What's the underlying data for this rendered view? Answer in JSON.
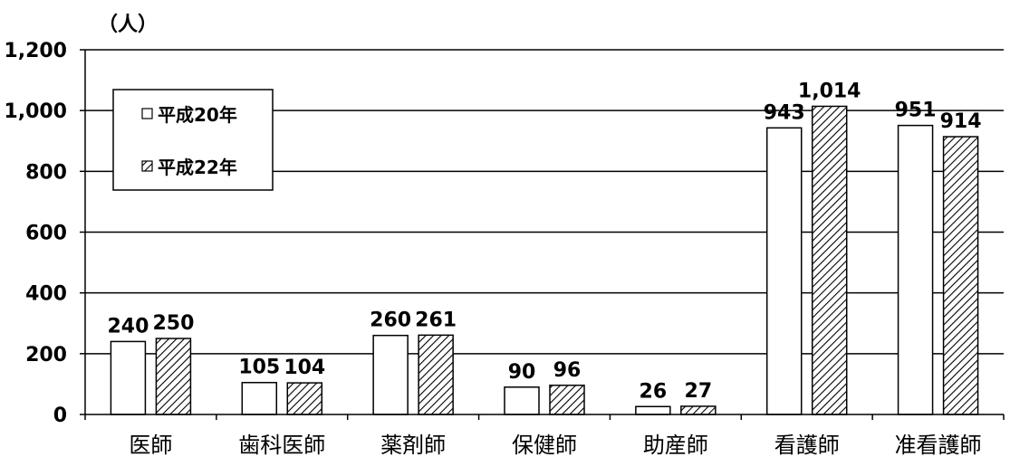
{
  "chart_data": {
    "type": "bar",
    "unit_label": "（人）",
    "categories": [
      "医師",
      "歯科医師",
      "薬剤師",
      "保健師",
      "助産師",
      "看護師",
      "准看護師"
    ],
    "series": [
      {
        "name": "平成20年",
        "values": [
          240,
          105,
          260,
          90,
          26,
          943,
          951
        ],
        "labels": [
          "240",
          "105",
          "260",
          "90",
          "26",
          "943",
          "951"
        ],
        "pattern": "none"
      },
      {
        "name": "平成22年",
        "values": [
          250,
          104,
          261,
          96,
          27,
          1014,
          914
        ],
        "labels": [
          "250",
          "104",
          "261",
          "96",
          "27",
          "1,014",
          "914"
        ],
        "pattern": "diagonal-hatch"
      }
    ],
    "yticks": [
      0,
      200,
      400,
      600,
      800,
      1000,
      1200
    ],
    "ytick_labels": [
      "0",
      "200",
      "400",
      "600",
      "800",
      "1,000",
      "1,200"
    ],
    "ylim": [
      0,
      1200
    ],
    "grid": true,
    "legend_position": "top-left",
    "colors": {
      "bar_fill": "#ffffff",
      "hatch": "#000000",
      "axis": "#000000"
    }
  }
}
